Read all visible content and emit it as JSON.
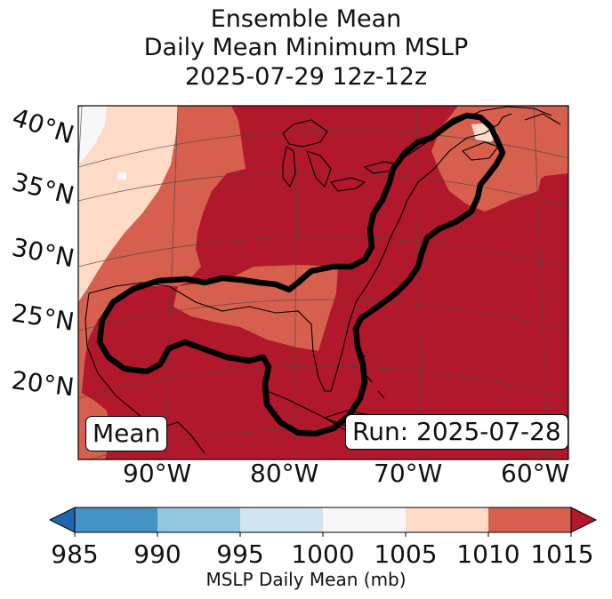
{
  "title": {
    "line1": "Ensemble Mean",
    "line2": "Daily Mean Minimum MSLP",
    "line3": "2025-07-29 12z-12z"
  },
  "map": {
    "region": "Gulf of Mexico, US East Coast and western North Atlantic",
    "lat_labels": [
      "40°N",
      "35°N",
      "30°N",
      "25°N",
      "20°N"
    ],
    "lon_labels": [
      "90°W",
      "80°W",
      "70°W",
      "60°W"
    ],
    "mean_label": "Mean",
    "run_label": "Run: 2025-07-28",
    "contour": "closed black contour outlining lower pressure from the Gulf of Mexico up the US East Coast"
  },
  "colorbar": {
    "ticks": [
      "985",
      "990",
      "995",
      "1000",
      "1005",
      "1010",
      "1015"
    ],
    "label": "MSLP Daily Mean (mb)",
    "colors": [
      "#2166ac",
      "#4393c3",
      "#92c5de",
      "#d1e5f0",
      "#f7f7f7",
      "#fddbc7",
      "#d6604d",
      "#b2182b"
    ]
  },
  "colors": {
    "deep_red": "#b2182b",
    "mid_red": "#d6604d",
    "light_salmon": "#fddbc7",
    "near_white": "#f7f7f7",
    "contour": "#000000"
  }
}
